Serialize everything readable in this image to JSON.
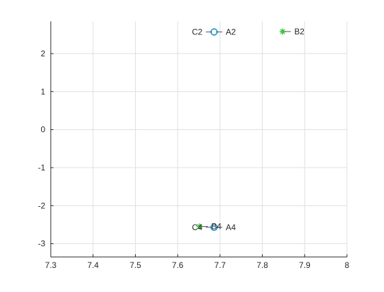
{
  "chart_data": {
    "type": "scatter",
    "title": "",
    "xlabel": "",
    "ylabel": "",
    "xlim": [
      7.3,
      8.0
    ],
    "ylim": [
      -3.35,
      2.85
    ],
    "x_ticks": [
      7.3,
      7.4,
      7.5,
      7.6,
      7.7,
      7.8,
      7.9,
      8.0
    ],
    "x_tick_labels": [
      "7.3",
      "7.4",
      "7.5",
      "7.6",
      "7.7",
      "7.8",
      "7.9",
      "8"
    ],
    "y_ticks": [
      -3,
      -2,
      -1,
      0,
      1,
      2
    ],
    "y_tick_labels": [
      "-3",
      "-2",
      "-1",
      "0",
      "1",
      "2"
    ],
    "grid": true,
    "legend": false,
    "colors": {
      "axis": "#262626",
      "grid": "#dfdfdf",
      "blue_marker": "#0b3db0",
      "cyan_marker": "#1a9ed8",
      "green_marker": "#2ec42e"
    },
    "points": [
      {
        "label": "A2",
        "x": 7.686,
        "y": 2.57,
        "marker": "circle",
        "color": "#0b3db0",
        "label_side": "right"
      },
      {
        "label": "C2",
        "x": 7.686,
        "y": 2.57,
        "marker": "circle",
        "color": "#1a9ed8",
        "label_side": "left"
      },
      {
        "label": "B2",
        "x": 7.848,
        "y": 2.58,
        "marker": "star",
        "color": "#2ec42e",
        "label_side": "right"
      },
      {
        "label": "A4",
        "x": 7.686,
        "y": -2.57,
        "marker": "circle",
        "color": "#0b3db0",
        "label_side": "right"
      },
      {
        "label": "C4",
        "x": 7.686,
        "y": -2.57,
        "marker": "circle",
        "color": "#1a9ed8",
        "label_side": "left"
      },
      {
        "label": "B4",
        "x": 7.652,
        "y": -2.55,
        "marker": "star",
        "color": "#2ec42e",
        "label_side": "right"
      }
    ]
  }
}
